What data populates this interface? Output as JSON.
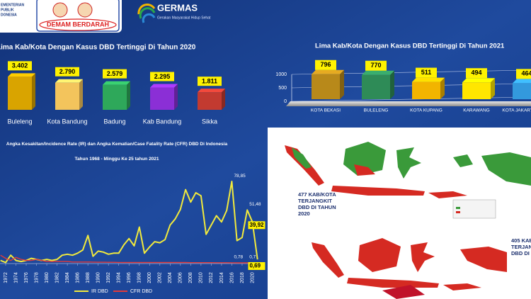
{
  "header": {
    "ministry": [
      "EMENTERIAN",
      "PUBLIK",
      "DONESIA"
    ],
    "logo": "DEMAM BERDARAH",
    "brand": "GERMAS",
    "brand_sub": "Gerakan Masyarakat Hidup Sehat"
  },
  "chart_data": [
    {
      "type": "bar",
      "title": "Lima Kab/Kota Dengan Kasus DBD Tertinggi Di Tahun 2020",
      "categories": [
        "Buleleng",
        "Kota Bandung",
        "Badung",
        "Kab Bandung",
        "Sikka"
      ],
      "values": [
        3402,
        2790,
        2579,
        2295,
        1811
      ],
      "value_labels": [
        "3.402",
        "2.790",
        "2.579",
        "2.295",
        "1.811"
      ],
      "colors": [
        "#d9a400",
        "#f3c45c",
        "#2ea85a",
        "#8b2fd6",
        "#c23a30"
      ],
      "ylim": [
        0,
        3500
      ]
    },
    {
      "type": "bar",
      "title": "Lima Kab/Kota Dengan Kasus DBD Tertinggi Di Tahun 2021",
      "categories": [
        "KOTA BEKASI",
        "BULELENG",
        "KOTA KUPANG",
        "KARAWANG",
        "KOTA JAKARTA TIMUR"
      ],
      "values": [
        796,
        770,
        511,
        494,
        464
      ],
      "colors": [
        "#b8891a",
        "#2e8b57",
        "#f2b400",
        "#ffe600",
        "#3399dd"
      ],
      "ylim": [
        0,
        1000
      ],
      "yticks": [
        0,
        500,
        1000
      ],
      "grid": true
    },
    {
      "type": "line",
      "title": "Angka Kesakitan/Incidence Rate (IR) dan Angka Kematian/Case Fatality Rate (CFR) DBD Di Indonesia",
      "subtitle": "Tahun 1968 - Minggu Ke 25 tahun 2021",
      "x": [
        1971,
        1972,
        1973,
        1974,
        1975,
        1976,
        1977,
        1978,
        1979,
        1980,
        1981,
        1982,
        1983,
        1984,
        1985,
        1986,
        1987,
        1988,
        1989,
        1990,
        1991,
        1992,
        1993,
        1994,
        1995,
        1996,
        1997,
        1998,
        1999,
        2000,
        2001,
        2002,
        2003,
        2004,
        2005,
        2006,
        2007,
        2008,
        2009,
        2010,
        2011,
        2012,
        2013,
        2014,
        2015,
        2016,
        2017,
        2018,
        2019,
        2020,
        2021
      ],
      "xlim": [
        1970.9,
        2022
      ],
      "xticks": [
        1972,
        1974,
        1976,
        1978,
        1980,
        1982,
        1984,
        1986,
        1988,
        1990,
        1992,
        1994,
        1996,
        1998,
        2000,
        2002,
        2004,
        2006,
        2008,
        2010,
        2012,
        2014,
        2016,
        2018,
        2020
      ],
      "ylim": [
        0,
        85
      ],
      "legend": "bottom",
      "series": [
        {
          "name": "IR DBD",
          "color": "#f2ea3c",
          "values": [
            3,
            1,
            8,
            3,
            2,
            3,
            5,
            4,
            3,
            4,
            3,
            4,
            8,
            9,
            8,
            10,
            13,
            27,
            7,
            12,
            11,
            9,
            10,
            10,
            18,
            24,
            17,
            35,
            10,
            16,
            21,
            20,
            23,
            37,
            43,
            52,
            71,
            59,
            68,
            65,
            28,
            37,
            46,
            40,
            51,
            78.85,
            22,
            25,
            51.48,
            39.92,
            4
          ],
          "labels": [
            null,
            null,
            null,
            null,
            null,
            null,
            null,
            null,
            null,
            null,
            null,
            null,
            null,
            null,
            null,
            null,
            null,
            null,
            null,
            null,
            null,
            null,
            null,
            null,
            null,
            null,
            null,
            null,
            null,
            null,
            null,
            null,
            null,
            null,
            null,
            null,
            null,
            null,
            null,
            null,
            null,
            null,
            null,
            null,
            null,
            "78,85",
            null,
            null,
            "51,48",
            "39,92",
            null
          ]
        },
        {
          "name": "CFR DBD",
          "color": "#e23a3a",
          "values": [
            8,
            5,
            3,
            6,
            4,
            3,
            3,
            4,
            3,
            2,
            2,
            2,
            2,
            2,
            1.5,
            1.5,
            1.5,
            1.5,
            1.4,
            1.3,
            1.3,
            1.2,
            1.2,
            1.1,
            1,
            1,
            1,
            1,
            1,
            1,
            1,
            1,
            1,
            1,
            1,
            1,
            1,
            0.9,
            0.9,
            0.9,
            0.9,
            0.9,
            0.8,
            0.8,
            0.8,
            0.78,
            0.7,
            0.7,
            0.7,
            0.69,
            0.7
          ],
          "labels": [
            null,
            null,
            null,
            null,
            null,
            null,
            null,
            null,
            null,
            null,
            null,
            null,
            null,
            null,
            null,
            null,
            null,
            null,
            null,
            null,
            null,
            null,
            null,
            null,
            null,
            null,
            null,
            null,
            null,
            null,
            null,
            null,
            null,
            null,
            null,
            null,
            null,
            null,
            null,
            null,
            null,
            null,
            null,
            null,
            null,
            "0,78",
            null,
            null,
            "0,7",
            "0,69",
            null
          ]
        }
      ]
    }
  ],
  "maps": [
    {
      "caption": [
        "477 KAB/KOTA",
        "TERJANGKIT",
        "DBD DI TAHUN",
        "2020"
      ]
    },
    {
      "caption": [
        "405 KAB",
        "TERJAN",
        "DBD DI"
      ]
    }
  ]
}
